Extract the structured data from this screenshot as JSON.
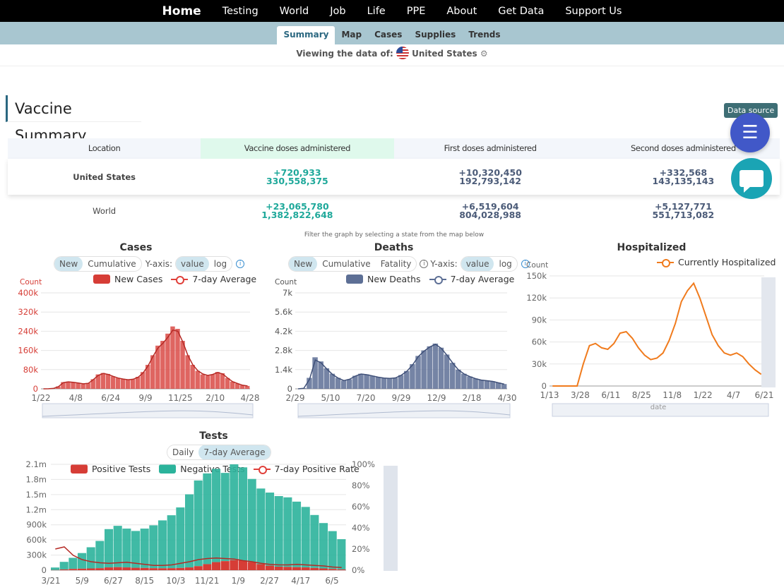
{
  "nav": {
    "items": [
      "Home",
      "Testing",
      "World",
      "Job",
      "Life",
      "PPE",
      "About",
      "Get Data",
      "Support Us"
    ]
  },
  "subnav": {
    "tabs": [
      "Summary",
      "Map",
      "Cases",
      "Supplies",
      "Trends"
    ],
    "active": "Summary"
  },
  "viewing": {
    "label": "Viewing the data of:",
    "country": "United States"
  },
  "summary": {
    "title": "Vaccine Summary",
    "data_source": "Data source",
    "columns": [
      "Location",
      "Vaccine doses administered",
      "First doses administered",
      "Second doses administered"
    ],
    "rows": [
      {
        "location": "United States",
        "vaccine_delta": "+720,933",
        "vaccine_total": "330,558,375",
        "first_delta": "+10,320,450",
        "first_total": "192,793,142",
        "second_delta": "+332,568",
        "second_total": "143,135,143"
      },
      {
        "location": "World",
        "vaccine_delta": "+23,065,780",
        "vaccine_total": "1,382,822,648",
        "first_delta": "+6,519,604",
        "first_total": "804,028,988",
        "second_delta": "+5,127,771",
        "second_total": "551,713,082"
      }
    ]
  },
  "filter_hint": "Filter the graph by selecting a state from the map below",
  "cases": {
    "title": "Cases",
    "toggle": [
      "New",
      "Cumulative"
    ],
    "toggle_on": "New",
    "yaxis_label": "Y-axis:",
    "scale": [
      "value",
      "log"
    ],
    "scale_on": "value",
    "legend": [
      "New Cases",
      "7-day Average"
    ],
    "ylabel": "Count"
  },
  "deaths": {
    "title": "Deaths",
    "toggle": [
      "New",
      "Cumulative",
      "Fatality"
    ],
    "toggle_on": "New",
    "yaxis_label": "Y-axis:",
    "scale": [
      "value",
      "log"
    ],
    "scale_on": "value",
    "legend": [
      "New Deaths",
      "7-day Average"
    ],
    "ylabel": "Count"
  },
  "hosp": {
    "title": "Hospitalized",
    "legend": [
      "Currently Hospitalized"
    ],
    "ylabel": "Count",
    "xlabel": "date"
  },
  "tests": {
    "title": "Tests",
    "toggle": [
      "Daily",
      "7-day Average"
    ],
    "toggle_on": "7-day Average",
    "legend": [
      "Positive Tests",
      "Negative Tests",
      "7-day Positive Rate"
    ]
  },
  "colors": {
    "cases": "#d94a45",
    "deaths": "#5d6f95",
    "hosp": "#f07b1d",
    "positive": "#d63d36",
    "negative": "#2bb39b",
    "accent": "#2a6780"
  },
  "chart_data": [
    {
      "type": "bar",
      "title": "Cases",
      "ylabel": "Count",
      "x_ticks": [
        "1/22",
        "4/8",
        "6/24",
        "9/9",
        "11/25",
        "2/10",
        "4/28"
      ],
      "y_ticks": [
        "0",
        "80k",
        "160k",
        "240k",
        "320k",
        "400k"
      ],
      "ylim": [
        0,
        400000
      ],
      "series": [
        {
          "name": "New Cases",
          "values": [
            0,
            500,
            2000,
            10000,
            28000,
            30000,
            28000,
            24000,
            20000,
            24000,
            40000,
            60000,
            66000,
            62000,
            52000,
            45000,
            40000,
            38000,
            40000,
            50000,
            70000,
            100000,
            140000,
            180000,
            200000,
            230000,
            260000,
            250000,
            200000,
            140000,
            100000,
            75000,
            60000,
            55000,
            60000,
            70000,
            65000,
            45000,
            30000,
            22000,
            15000,
            12000
          ]
        },
        {
          "name": "7-day Average",
          "values": [
            0,
            400,
            1800,
            9000,
            26000,
            29000,
            27000,
            24000,
            21000,
            23000,
            38000,
            56000,
            64000,
            60000,
            52000,
            45000,
            41000,
            38000,
            40000,
            48000,
            66000,
            95000,
            135000,
            170000,
            190000,
            215000,
            245000,
            240000,
            195000,
            140000,
            100000,
            76000,
            62000,
            56000,
            60000,
            68000,
            62000,
            45000,
            30000,
            22000,
            15000,
            12000
          ]
        }
      ]
    },
    {
      "type": "bar",
      "title": "Deaths",
      "ylabel": "Count",
      "x_ticks": [
        "2/29",
        "5/10",
        "7/20",
        "9/29",
        "12/9",
        "2/18",
        "4/30"
      ],
      "y_ticks": [
        "0",
        "1.4k",
        "2.8k",
        "4.2k",
        "5.6k",
        "7k"
      ],
      "ylim": [
        0,
        7000
      ],
      "series": [
        {
          "name": "New Deaths",
          "values": [
            0,
            50,
            800,
            2300,
            2000,
            1500,
            1100,
            800,
            600,
            700,
            950,
            1100,
            1050,
            950,
            850,
            800,
            750,
            800,
            1000,
            1300,
            1800,
            2400,
            2800,
            3100,
            3300,
            3000,
            2500,
            1900,
            1400,
            1100,
            900,
            750,
            650,
            600,
            550,
            450,
            350
          ]
        },
        {
          "name": "7-day Average",
          "values": [
            0,
            40,
            700,
            2100,
            1900,
            1450,
            1050,
            780,
            600,
            700,
            930,
            1080,
            1030,
            940,
            850,
            790,
            760,
            800,
            990,
            1280,
            1750,
            2350,
            2750,
            3050,
            3250,
            2950,
            2450,
            1880,
            1380,
            1080,
            890,
            740,
            640,
            590,
            540,
            440,
            340
          ]
        }
      ]
    },
    {
      "type": "line",
      "title": "Hospitalized",
      "ylabel": "Count",
      "xlabel": "date",
      "x_ticks": [
        "1/13",
        "3/28",
        "6/11",
        "8/25",
        "11/8",
        "1/22",
        "4/7",
        "6/21"
      ],
      "y_ticks": [
        "0",
        "30k",
        "60k",
        "90k",
        "120k",
        "150k"
      ],
      "ylim": [
        0,
        150000
      ],
      "series": [
        {
          "name": "Currently Hospitalized",
          "values": [
            0,
            0,
            0,
            0,
            0,
            30000,
            55000,
            58000,
            52000,
            50000,
            58000,
            72000,
            74000,
            65000,
            52000,
            42000,
            36000,
            38000,
            45000,
            62000,
            85000,
            115000,
            130000,
            140000,
            120000,
            95000,
            70000,
            55000,
            45000,
            42000,
            45000,
            40000,
            30000,
            22000,
            16000
          ]
        }
      ]
    },
    {
      "type": "bar",
      "title": "Tests",
      "x_ticks": [
        "3/21",
        "5/9",
        "6/27",
        "8/15",
        "10/3",
        "11/21",
        "1/9",
        "2/27",
        "4/17",
        "6/5"
      ],
      "y_ticks": [
        "0",
        "300k",
        "600k",
        "900k",
        "1.2m",
        "1.5m",
        "1.8m",
        "2.1m"
      ],
      "y2_ticks": [
        "0%",
        "20%",
        "40%",
        "60%",
        "80%",
        "100%"
      ],
      "ylim": [
        0,
        2100000
      ],
      "y2lim": [
        0,
        100
      ],
      "series": [
        {
          "name": "Positive Tests",
          "values": [
            3000,
            15000,
            25000,
            30000,
            35000,
            40000,
            55000,
            60000,
            55000,
            48000,
            45000,
            40000,
            38000,
            40000,
            45000,
            55000,
            80000,
            120000,
            160000,
            180000,
            200000,
            190000,
            160000,
            120000,
            90000,
            70000,
            65000,
            60000,
            55000,
            45000,
            35000,
            25000,
            15000
          ]
        },
        {
          "name": "Negative Tests",
          "values": [
            50000,
            150000,
            220000,
            310000,
            420000,
            540000,
            760000,
            820000,
            770000,
            730000,
            780000,
            850000,
            950000,
            1050000,
            1200000,
            1450000,
            1700000,
            1800000,
            1850000,
            1750000,
            1900000,
            1850000,
            1650000,
            1500000,
            1450000,
            1400000,
            1380000,
            1300000,
            1200000,
            1050000,
            900000,
            750000,
            600000
          ]
        },
        {
          "name": "7-day Positive Rate",
          "values": [
            20,
            22,
            14,
            10,
            8,
            7,
            6.5,
            7,
            7.5,
            6.5,
            5.5,
            4.5,
            4.5,
            5,
            6.5,
            8,
            10,
            11,
            11.5,
            11,
            10.5,
            9,
            8,
            6.5,
            5.5,
            5,
            5,
            5.5,
            5,
            4.5,
            4,
            3,
            2.5
          ]
        }
      ]
    }
  ]
}
